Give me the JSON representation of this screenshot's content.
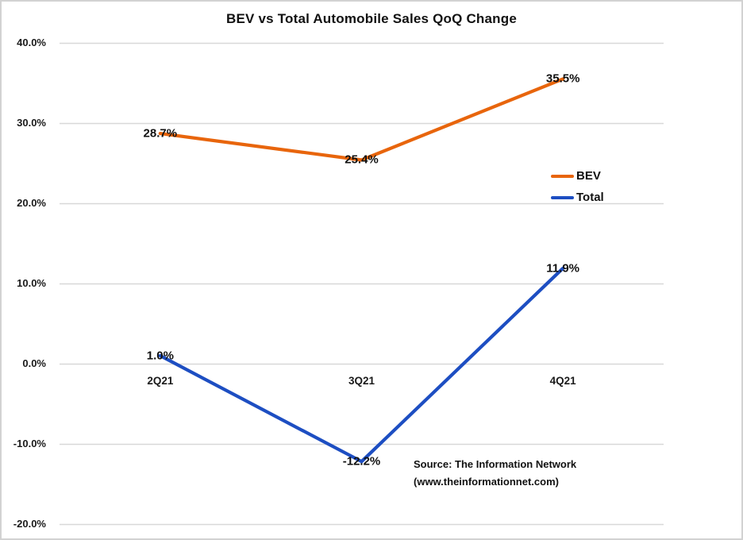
{
  "window": {
    "background": "#ffffff",
    "frame_border_color": "#d2d2d2"
  },
  "chart_data": {
    "type": "line",
    "title": "BEV vs Total Automobile Sales QoQ Change",
    "categories": [
      "2Q21",
      "3Q21",
      "4Q21"
    ],
    "series": [
      {
        "name": "BEV",
        "color": "#e8650c",
        "values": [
          28.7,
          25.4,
          35.5
        ],
        "labels": [
          "28.7%",
          "25.4%",
          "35.5%"
        ]
      },
      {
        "name": "Total",
        "color": "#1d4ec2",
        "values": [
          1.0,
          -12.2,
          11.9
        ],
        "labels": [
          "1.0%",
          "-12.2%",
          "11.9%"
        ]
      }
    ],
    "xlabel": "",
    "ylabel": "",
    "ylim": [
      -20,
      40
    ],
    "yticks": [
      {
        "value": 40,
        "label": "40.0%"
      },
      {
        "value": 30,
        "label": "30.0%"
      },
      {
        "value": 20,
        "label": "20.0%"
      },
      {
        "value": 10,
        "label": "10.0%"
      },
      {
        "value": 0,
        "label": "0.0%"
      },
      {
        "value": -10,
        "label": "-10.0%"
      },
      {
        "value": -20,
        "label": "-20.0%"
      }
    ],
    "grid": true,
    "gridline_color": "#d8d8d8",
    "legend_position": "middle-right",
    "data_label_position": "center"
  },
  "source": {
    "line1": "Source: The Information Network",
    "line2": "(www.theinformationnet.com)"
  }
}
